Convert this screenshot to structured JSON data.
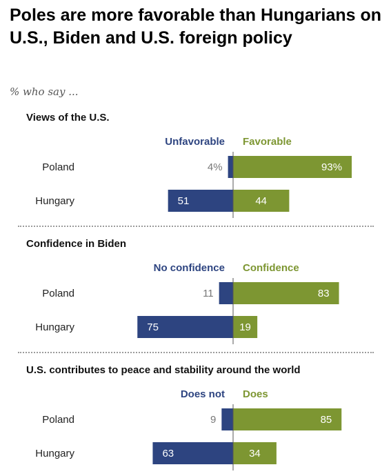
{
  "title": "Poles are more favorable than Hungarians on U.S., Biden and U.S. foreign policy",
  "subtitle": "% who say ...",
  "colors": {
    "negative": "#2d4480",
    "positive": "#7d9632"
  },
  "chart_data": [
    {
      "type": "bar",
      "title": "Views of the U.S.",
      "categories": [
        "Poland",
        "Hungary"
      ],
      "series": [
        {
          "name": "Unfavorable",
          "values": [
            4,
            51
          ],
          "labels": [
            "4%",
            "51"
          ]
        },
        {
          "name": "Favorable",
          "values": [
            93,
            44
          ],
          "labels": [
            "93%",
            "44"
          ]
        }
      ]
    },
    {
      "type": "bar",
      "title": "Confidence in Biden",
      "categories": [
        "Poland",
        "Hungary"
      ],
      "series": [
        {
          "name": "No confidence",
          "values": [
            11,
            75
          ],
          "labels": [
            "11",
            "75"
          ]
        },
        {
          "name": "Confidence",
          "values": [
            83,
            19
          ],
          "labels": [
            "83",
            "19"
          ]
        }
      ]
    },
    {
      "type": "bar",
      "title": "U.S. contributes to peace and stability around the world",
      "categories": [
        "Poland",
        "Hungary"
      ],
      "series": [
        {
          "name": "Does not",
          "values": [
            9,
            63
          ],
          "labels": [
            "9",
            "63"
          ]
        },
        {
          "name": "Does",
          "values": [
            85,
            34
          ],
          "labels": [
            "85",
            "34"
          ]
        }
      ]
    }
  ]
}
